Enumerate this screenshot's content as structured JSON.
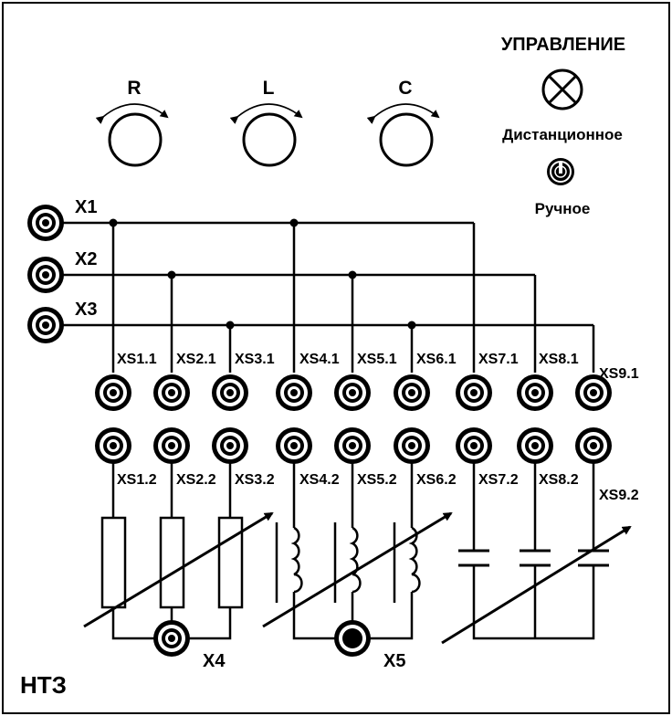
{
  "panel": {
    "control_title": "УПРАВЛЕНИЕ",
    "mode_remote": "Дистанционное",
    "mode_manual": "Ручное",
    "brand": "НТЗ"
  },
  "knobs": [
    {
      "label": "R"
    },
    {
      "label": "L"
    },
    {
      "label": "C"
    }
  ],
  "terminals": [
    {
      "label": "X1"
    },
    {
      "label": "X2"
    },
    {
      "label": "X3"
    }
  ],
  "outputs": [
    {
      "label": "X4"
    },
    {
      "label": "X5"
    }
  ],
  "sockets_top": [
    "XS1.1",
    "XS2.1",
    "XS3.1",
    "XS4.1",
    "XS5.1",
    "XS6.1",
    "XS7.1",
    "XS8.1",
    "XS9.1"
  ],
  "sockets_bottom": [
    "XS1.2",
    "XS2.2",
    "XS3.2",
    "XS4.2",
    "XS5.2",
    "XS6.2",
    "XS7.2",
    "XS8.2",
    "XS9.2"
  ]
}
